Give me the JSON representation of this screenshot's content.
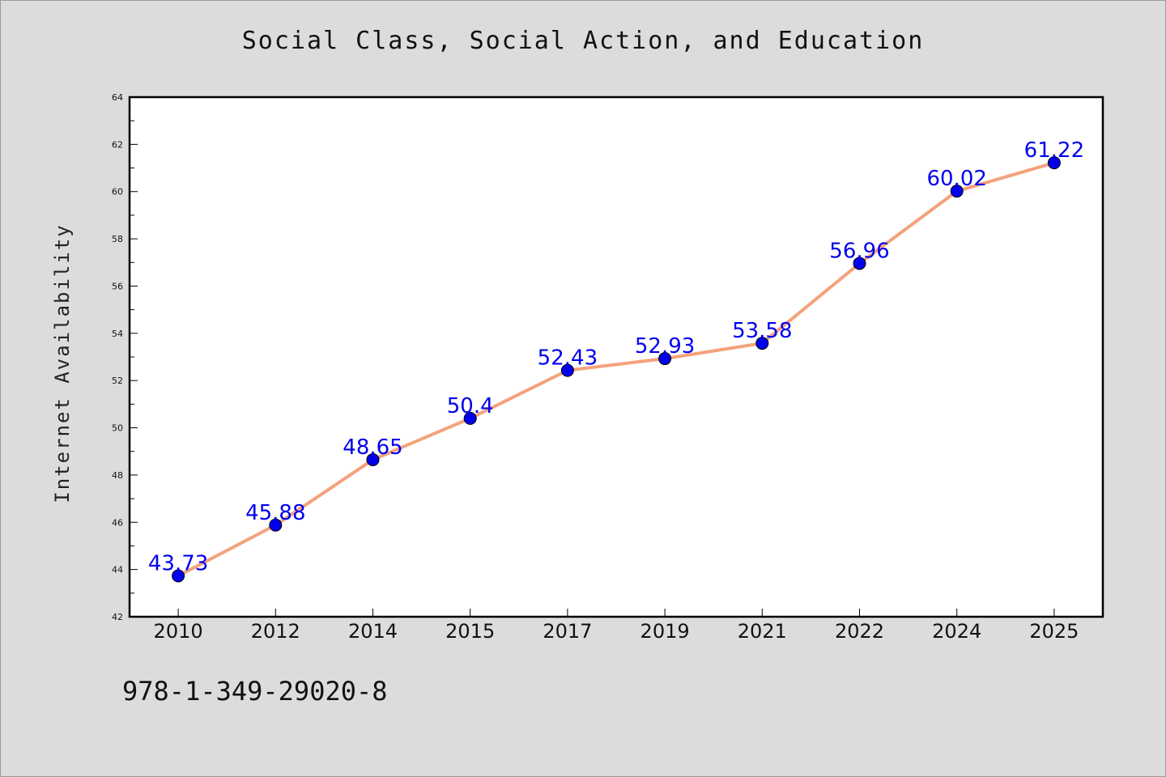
{
  "chart_data": {
    "type": "line",
    "title": "Social Class, Social Action, and Education",
    "xlabel": "",
    "ylabel": "Internet Availability",
    "categories": [
      "2010",
      "2012",
      "2014",
      "2015",
      "2017",
      "2019",
      "2021",
      "2022",
      "2024",
      "2025"
    ],
    "series": [
      {
        "values": [
          43.73,
          45.88,
          48.65,
          50.4,
          52.43,
          52.93,
          53.58,
          56.96,
          60.02,
          61.22
        ],
        "labels": [
          "43.73",
          "45.88",
          "48.65",
          "50.4",
          "52.43",
          "52.93",
          "53.58",
          "56.96",
          "60.02",
          "61.22"
        ]
      }
    ],
    "ylim": [
      42,
      64
    ],
    "yticks": [
      "42",
      "44",
      "46",
      "48",
      "50",
      "52",
      "54",
      "56",
      "58",
      "60",
      "62",
      "64"
    ],
    "grid": false,
    "colors": {
      "line": "#f4a27c",
      "marker": "#0000ee",
      "label": "#0000ee",
      "background": "#dcdcdc",
      "plot_area": "#ffffff"
    }
  },
  "footer": {
    "isbn": "978-1-349-29020-8"
  }
}
